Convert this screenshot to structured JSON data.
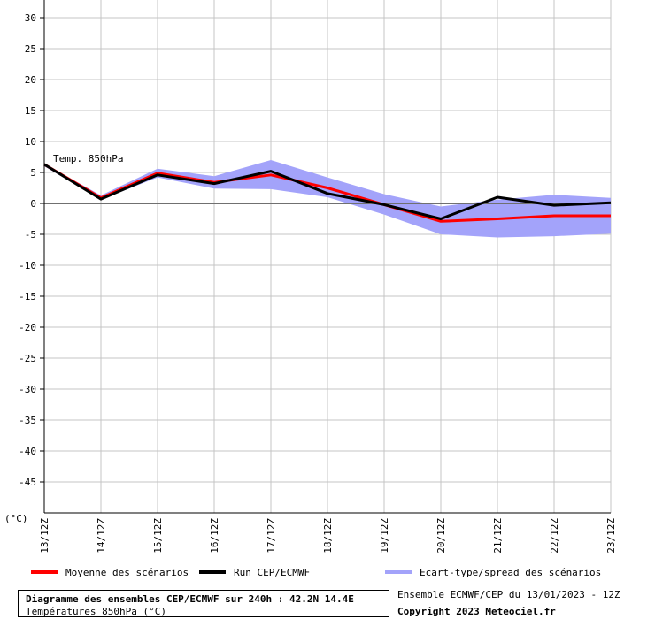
{
  "chart_data": {
    "type": "line",
    "x": [
      "13/12Z",
      "14/12Z",
      "15/12Z",
      "16/12Z",
      "17/12Z",
      "18/12Z",
      "19/12Z",
      "20/12Z",
      "21/12Z",
      "22/12Z",
      "23/12Z"
    ],
    "ylim": [
      -50,
      30
    ],
    "yticks": [
      30,
      25,
      20,
      15,
      10,
      5,
      0,
      -5,
      -10,
      -15,
      -20,
      -25,
      -30,
      -35,
      -40,
      -45
    ],
    "yunit": "(°C)",
    "grid": true,
    "annotation": "Temp. 850hPa",
    "series": [
      {
        "name": "Ecart-type/spread des scénarios",
        "kind": "band",
        "color": "#a3a3fa",
        "upper": [
          6.4,
          1.3,
          5.6,
          4.4,
          7.0,
          4.2,
          1.5,
          -0.5,
          0.6,
          1.4,
          0.9
        ],
        "lower": [
          6.0,
          0.6,
          4.2,
          2.4,
          2.3,
          1.0,
          -1.8,
          -5.0,
          -5.5,
          -5.3,
          -4.9
        ]
      },
      {
        "name": "Moyenne des scénarios",
        "kind": "line",
        "color": "#ff0000",
        "values": [
          6.3,
          0.9,
          4.9,
          3.4,
          4.6,
          2.5,
          -0.2,
          -2.9,
          -2.5,
          -2.0,
          -2.0
        ]
      },
      {
        "name": "Run CEP/ECMWF",
        "kind": "line",
        "color": "#000000",
        "values": [
          6.3,
          0.7,
          4.6,
          3.2,
          5.2,
          1.6,
          -0.2,
          -2.5,
          1.0,
          -0.3,
          0.1
        ]
      }
    ],
    "legend_placement": "bottom"
  },
  "footer": {
    "title": "Diagramme des ensembles CEP/ECMWF sur 240h : 42.2N 14.4E",
    "subtitle": "Températures 850hPa (°C)",
    "run_info": "Ensemble ECMWF/CEP du 13/01/2023 - 12Z",
    "copyright": "Copyright 2023 Meteociel.fr"
  }
}
